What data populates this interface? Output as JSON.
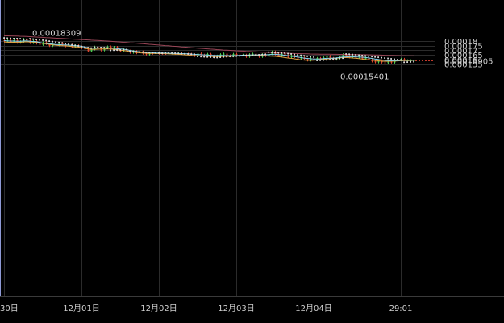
{
  "chart_data": {
    "type": "candlestick",
    "x_ticks": [
      {
        "label": "30日",
        "t": 0
      },
      {
        "label": "12月01日",
        "t": 24
      },
      {
        "label": "12月02日",
        "t": 48
      },
      {
        "label": "12月03日",
        "t": 72
      },
      {
        "label": "12月04日",
        "t": 96
      },
      {
        "label": "29:01",
        "t": 123
      }
    ],
    "y_ticks": [
      {
        "label": "0.00018",
        "v": 0.00018
      },
      {
        "label": "0.000175",
        "v": 0.000175
      },
      {
        "label": "0.00017",
        "v": 0.00017
      },
      {
        "label": "0.000165",
        "v": 0.000165
      },
      {
        "label": "0.00016",
        "v": 0.00016
      },
      {
        "label": "0.000155",
        "v": 0.000155
      }
    ],
    "current_price": {
      "label": "0.00015905",
      "value": 0.00015905
    },
    "annotations": {
      "high": {
        "label": "0.00018309",
        "value": 0.00018309
      },
      "low": {
        "label": "0.00015401",
        "value": 0.00015401
      }
    },
    "colors": {
      "up": "#4ec94e",
      "down": "#d9462f",
      "ma_fast": "#86d3ee",
      "ma_mid": "#e3a441",
      "ma_slow": "#9a4657",
      "sar": "#d8d8d8",
      "grid": "#2b2b2b",
      "price_line": "#c0392b"
    },
    "series": {
      "close": [
        0.0001798,
        0.0001805,
        0.000179,
        0.000181,
        0.0001783,
        0.0001795,
        0.0001822,
        0.0001808,
        0.000178,
        0.00018,
        0.0001775,
        0.000176,
        0.0001785,
        0.000177,
        0.0001748,
        0.0001765,
        0.0001755,
        0.0001778,
        0.0001762,
        0.0001745,
        0.000176,
        0.0001735,
        0.0001752,
        0.000174,
        0.0001725,
        0.000171,
        0.000169,
        0.000171,
        0.0001738,
        0.0001722,
        0.00017,
        0.0001728,
        0.000174,
        0.000172,
        0.0001735,
        0.0001705,
        0.000169,
        0.0001712,
        0.0001695,
        0.0001675,
        0.000169,
        0.000167,
        0.0001685,
        0.0001665,
        0.0001655,
        0.0001672,
        0.0001665,
        0.0001668,
        0.0001665,
        0.0001664,
        0.0001663,
        0.0001665,
        0.0001666,
        0.0001664,
        0.0001665,
        0.0001663,
        0.0001662,
        0.000166,
        0.0001654,
        0.000164,
        0.0001664,
        0.000165,
        0.0001632,
        0.000166,
        0.000164,
        0.0001625,
        0.000164,
        0.0001655,
        0.0001663,
        0.0001643,
        0.0001635,
        0.000166,
        0.0001653,
        0.0001645,
        0.000165,
        0.000163,
        0.0001655,
        0.0001662,
        0.0001643,
        0.000163,
        0.0001655,
        0.000164,
        0.000166,
        0.0001685,
        0.0001655,
        0.000164,
        0.0001665,
        0.0001642,
        0.0001625,
        0.000164,
        0.0001628,
        0.000161,
        0.000162,
        0.0001605,
        0.000159,
        0.0001612,
        0.0001595,
        0.0001615,
        0.00016,
        0.000162,
        0.0001638,
        0.0001615,
        0.00016,
        0.0001612,
        0.000163,
        0.0001655,
        0.000164,
        0.0001625,
        0.000164,
        0.000162,
        0.0001638,
        0.0001605,
        0.000162,
        0.0001595,
        0.000158,
        0.000157,
        0.000159,
        0.0001568,
        0.000156,
        0.0001575,
        0.0001568,
        0.0001582,
        0.0001592,
        0.0001605,
        0.000159,
        0.000159,
        0.000159,
        0.000159
      ],
      "ma_fast": [
        0.0001805,
        0.0001803,
        0.00018,
        0.00018,
        0.0001797,
        0.0001797,
        0.00018,
        0.0001802,
        0.0001797,
        0.0001796,
        0.0001793,
        0.0001786,
        0.0001779,
        0.0001775,
        0.0001771,
        0.0001767,
        0.0001763,
        0.0001761,
        0.000176,
        0.0001759,
        0.0001757,
        0.0001752,
        0.000175,
        0.0001749,
        0.0001743,
        0.0001735,
        0.0001728,
        0.0001723,
        0.0001722,
        0.0001724,
        0.0001726,
        0.0001726,
        0.0001726,
        0.0001725,
        0.0001722,
        0.0001718,
        0.0001714,
        0.0001712,
        0.0001707,
        0.0001699,
        0.0001694,
        0.0001689,
        0.0001684,
        0.0001679,
        0.0001676,
        0.0001676,
        0.0001674,
        0.0001672,
        0.0001671,
        0.000167,
        0.0001669,
        0.0001668,
        0.0001667,
        0.0001666,
        0.0001665,
        0.0001664,
        0.0001663,
        0.0001661,
        0.0001659,
        0.0001656,
        0.0001654,
        0.0001652,
        0.000165,
        0.0001648,
        0.0001646,
        0.0001644,
        0.0001643,
        0.0001643,
        0.0001643,
        0.0001642,
        0.0001641,
        0.0001642,
        0.0001643,
        0.0001645,
        0.0001647,
        0.0001647,
        0.0001648,
        0.000165,
        0.000165,
        0.000165,
        0.0001651,
        0.0001652,
        0.0001652,
        0.0001656,
        0.0001656,
        0.0001654,
        0.0001651,
        0.0001646,
        0.0001642,
        0.0001637,
        0.0001632,
        0.0001627,
        0.0001621,
        0.0001615,
        0.0001611,
        0.0001608,
        0.0001605,
        0.0001605,
        0.0001606,
        0.0001609,
        0.0001612,
        0.0001613,
        0.0001615,
        0.0001617,
        0.0001621,
        0.0001626,
        0.0001628,
        0.000163,
        0.000163,
        0.0001628,
        0.0001627,
        0.0001625,
        0.0001622,
        0.0001617,
        0.0001611,
        0.0001604,
        0.00016,
        0.0001594,
        0.000159,
        0.0001587,
        0.0001586,
        0.0001587,
        0.0001588,
        0.000159,
        0.0001591,
        0.0001591,
        0.0001592,
        0.0001592
      ],
      "ma_mid": [
        0.000179,
        0.0001788,
        0.0001786,
        0.0001787,
        0.0001786,
        0.0001787,
        0.000179,
        0.0001792,
        0.000179,
        0.0001789,
        0.0001786,
        0.0001781,
        0.0001775,
        0.000177,
        0.0001765,
        0.000176,
        0.0001755,
        0.0001752,
        0.000175,
        0.0001748,
        0.0001745,
        0.0001741,
        0.0001737,
        0.0001735,
        0.000173,
        0.0001723,
        0.0001716,
        0.0001711,
        0.000171,
        0.0001712,
        0.0001714,
        0.0001715,
        0.0001715,
        0.0001714,
        0.0001711,
        0.0001707,
        0.0001702,
        0.0001698,
        0.0001693,
        0.0001687,
        0.0001682,
        0.0001677,
        0.0001673,
        0.000167,
        0.0001668,
        0.0001667,
        0.0001666,
        0.0001665,
        0.0001665,
        0.0001664,
        0.0001663,
        0.0001662,
        0.000166,
        0.0001658,
        0.0001656,
        0.0001654,
        0.0001651,
        0.0001648,
        0.0001645,
        0.0001642,
        0.000164,
        0.0001638,
        0.0001636,
        0.0001634,
        0.0001633,
        0.0001632,
        0.0001632,
        0.0001632,
        0.0001633,
        0.0001633,
        0.0001634,
        0.0001635,
        0.0001637,
        0.0001639,
        0.0001641,
        0.0001642,
        0.0001643,
        0.0001644,
        0.0001644,
        0.0001643,
        0.0001642,
        0.000164,
        0.0001637,
        0.0001636,
        0.0001634,
        0.000163,
        0.0001626,
        0.0001621,
        0.0001616,
        0.0001612,
        0.0001607,
        0.0001602,
        0.0001597,
        0.0001593,
        0.000159,
        0.000159,
        0.0001591,
        0.0001594,
        0.0001597,
        0.0001601,
        0.0001605,
        0.0001608,
        0.0001611,
        0.0001614,
        0.0001617,
        0.000162,
        0.000162,
        0.0001619,
        0.0001616,
        0.0001613,
        0.0001609,
        0.0001605,
        0.0001601,
        0.0001597,
        0.0001593,
        0.0001589,
        0.0001585,
        0.0001582,
        0.000158,
        0.000158,
        0.0001581,
        0.0001582,
        0.0001584,
        0.0001586,
        0.0001587,
        0.0001588,
        0.0001589,
        0.000159
      ],
      "ma_slow": [
        0.0001858,
        0.0001857,
        0.0001856,
        0.0001855,
        0.0001854,
        0.0001853,
        0.0001852,
        0.000185,
        0.0001848,
        0.0001846,
        0.0001844,
        0.0001842,
        0.000184,
        0.0001838,
        0.0001836,
        0.0001834,
        0.0001832,
        0.000183,
        0.0001828,
        0.0001826,
        0.0001824,
        0.0001822,
        0.000182,
        0.0001818,
        0.0001816,
        0.0001814,
        0.0001812,
        0.000181,
        0.0001808,
        0.0001806,
        0.0001804,
        0.0001802,
        0.00018,
        0.0001797,
        0.0001795,
        0.0001792,
        0.000179,
        0.0001787,
        0.0001785,
        0.0001782,
        0.000178,
        0.0001777,
        0.0001774,
        0.0001771,
        0.0001768,
        0.0001765,
        0.0001762,
        0.000176,
        0.0001757,
        0.0001754,
        0.0001751,
        0.0001749,
        0.0001746,
        0.0001743,
        0.000174,
        0.0001737,
        0.0001735,
        0.0001732,
        0.0001729,
        0.0001726,
        0.0001724,
        0.0001721,
        0.0001718,
        0.0001716,
        0.0001713,
        0.0001711,
        0.0001708,
        0.0001706,
        0.0001703,
        0.0001701,
        0.0001699,
        0.0001697,
        0.0001695,
        0.0001693,
        0.0001691,
        0.0001689,
        0.0001687,
        0.0001685,
        0.0001683,
        0.0001682,
        0.000168,
        0.0001678,
        0.0001677,
        0.0001675,
        0.0001674,
        0.0001672,
        0.0001671,
        0.0001669,
        0.0001668,
        0.0001667,
        0.0001665,
        0.0001664,
        0.0001663,
        0.0001662,
        0.0001661,
        0.000166,
        0.0001659,
        0.0001659,
        0.0001658,
        0.0001658,
        0.0001657,
        0.0001657,
        0.0001656,
        0.0001656,
        0.0001655,
        0.0001655,
        0.0001655,
        0.0001654,
        0.0001654,
        0.0001653,
        0.0001653,
        0.0001652,
        0.0001652,
        0.0001651,
        0.000165,
        0.0001649,
        0.0001648,
        0.0001647,
        0.0001646,
        0.0001645,
        0.0001644,
        0.0001643,
        0.0001642,
        0.0001641,
        0.0001641,
        0.000164,
        0.000164,
        0.000164
      ],
      "sar": [
        0.0001835,
        0.0001832,
        0.000183,
        0.0001828,
        0.0001828,
        0.0001826,
        0.0001815,
        0.000182,
        0.0001826,
        0.0001822,
        0.0001818,
        0.0001814,
        0.000181,
        0.0001806,
        0.00018,
        0.0001795,
        0.000179,
        0.0001785,
        0.000178,
        0.0001773,
        0.0001766,
        0.000176,
        0.0001754,
        0.0001748,
        0.0001742,
        0.0001736,
        0.000173,
        0.0001725,
        0.0001735,
        0.0001733,
        0.0001731,
        0.0001729,
        0.0001725,
        0.00017,
        0.0001702,
        0.0001704,
        0.0001706,
        0.0001708,
        0.000171,
        0.000169,
        0.0001688,
        0.0001685,
        0.0001683,
        0.0001681,
        0.0001679,
        0.0001677,
        0.0001675,
        0.0001673,
        0.0001671,
        0.0001669,
        0.0001674,
        0.0001673,
        0.0001671,
        0.0001669,
        0.0001667,
        0.0001665,
        0.0001663,
        0.0001661,
        0.0001659,
        0.0001657,
        0.0001633,
        0.0001632,
        0.000163,
        0.0001628,
        0.0001626,
        0.0001624,
        0.0001622,
        0.0001625,
        0.0001628,
        0.0001631,
        0.0001634,
        0.0001636,
        0.0001638,
        0.000164,
        0.0001642,
        0.0001644,
        0.0001646,
        0.0001648,
        0.000165,
        0.0001652,
        0.0001654,
        0.0001656,
        0.000168,
        0.0001678,
        0.0001676,
        0.0001674,
        0.0001672,
        0.000167,
        0.0001665,
        0.0001661,
        0.0001656,
        0.0001651,
        0.0001646,
        0.0001641,
        0.0001636,
        0.0001631,
        0.0001626,
        0.000159,
        0.0001592,
        0.0001594,
        0.0001596,
        0.0001598,
        0.0001604,
        0.0001609,
        0.0001613,
        0.0001615,
        0.000166,
        0.0001658,
        0.0001655,
        0.0001652,
        0.0001648,
        0.0001644,
        0.000164,
        0.0001636,
        0.0001632,
        0.0001628,
        0.0001624,
        0.000162,
        0.0001616,
        0.0001612,
        0.0001608,
        0.0001604,
        0.00016,
        0.0001596,
        0.000157,
        0.0001572,
        0.0001574,
        0.0001576
      ]
    }
  }
}
